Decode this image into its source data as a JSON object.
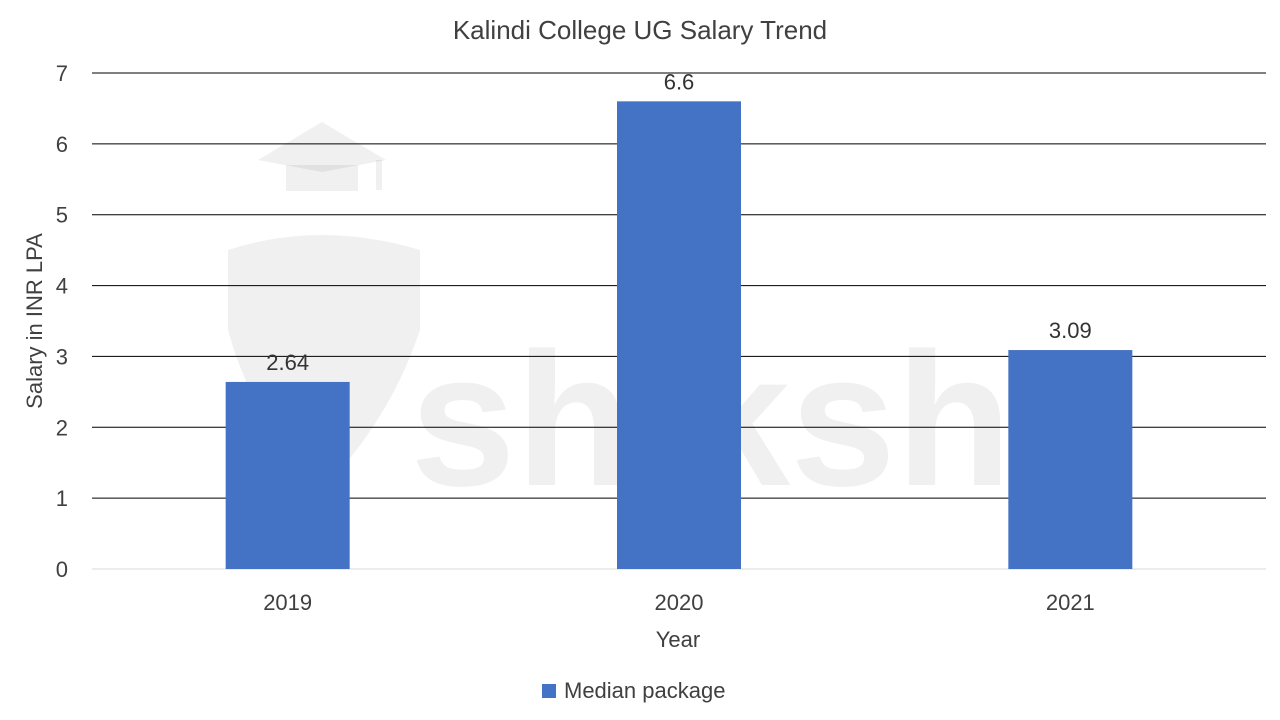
{
  "chart_data": {
    "type": "bar",
    "title": "Kalindi College UG Salary Trend",
    "categories": [
      "2019",
      "2020",
      "2021"
    ],
    "series": [
      {
        "name": "Median package",
        "values": [
          2.64,
          6.6,
          3.09
        ]
      }
    ],
    "data_labels": [
      "2.64",
      "6.6",
      "3.09"
    ],
    "xlabel": "Year",
    "ylabel": "Salary in INR LPA",
    "ylim": [
      0,
      7
    ],
    "yticks": [
      0,
      1,
      2,
      3,
      4,
      5,
      6,
      7
    ],
    "grid": true,
    "legend_position": "bottom",
    "colors": {
      "bar": "#4472C4",
      "grid": "#000000",
      "baseline": "#d9d9d9"
    }
  },
  "watermark": {
    "text": "shiksha",
    "icon": "graduation-cap-icon"
  }
}
